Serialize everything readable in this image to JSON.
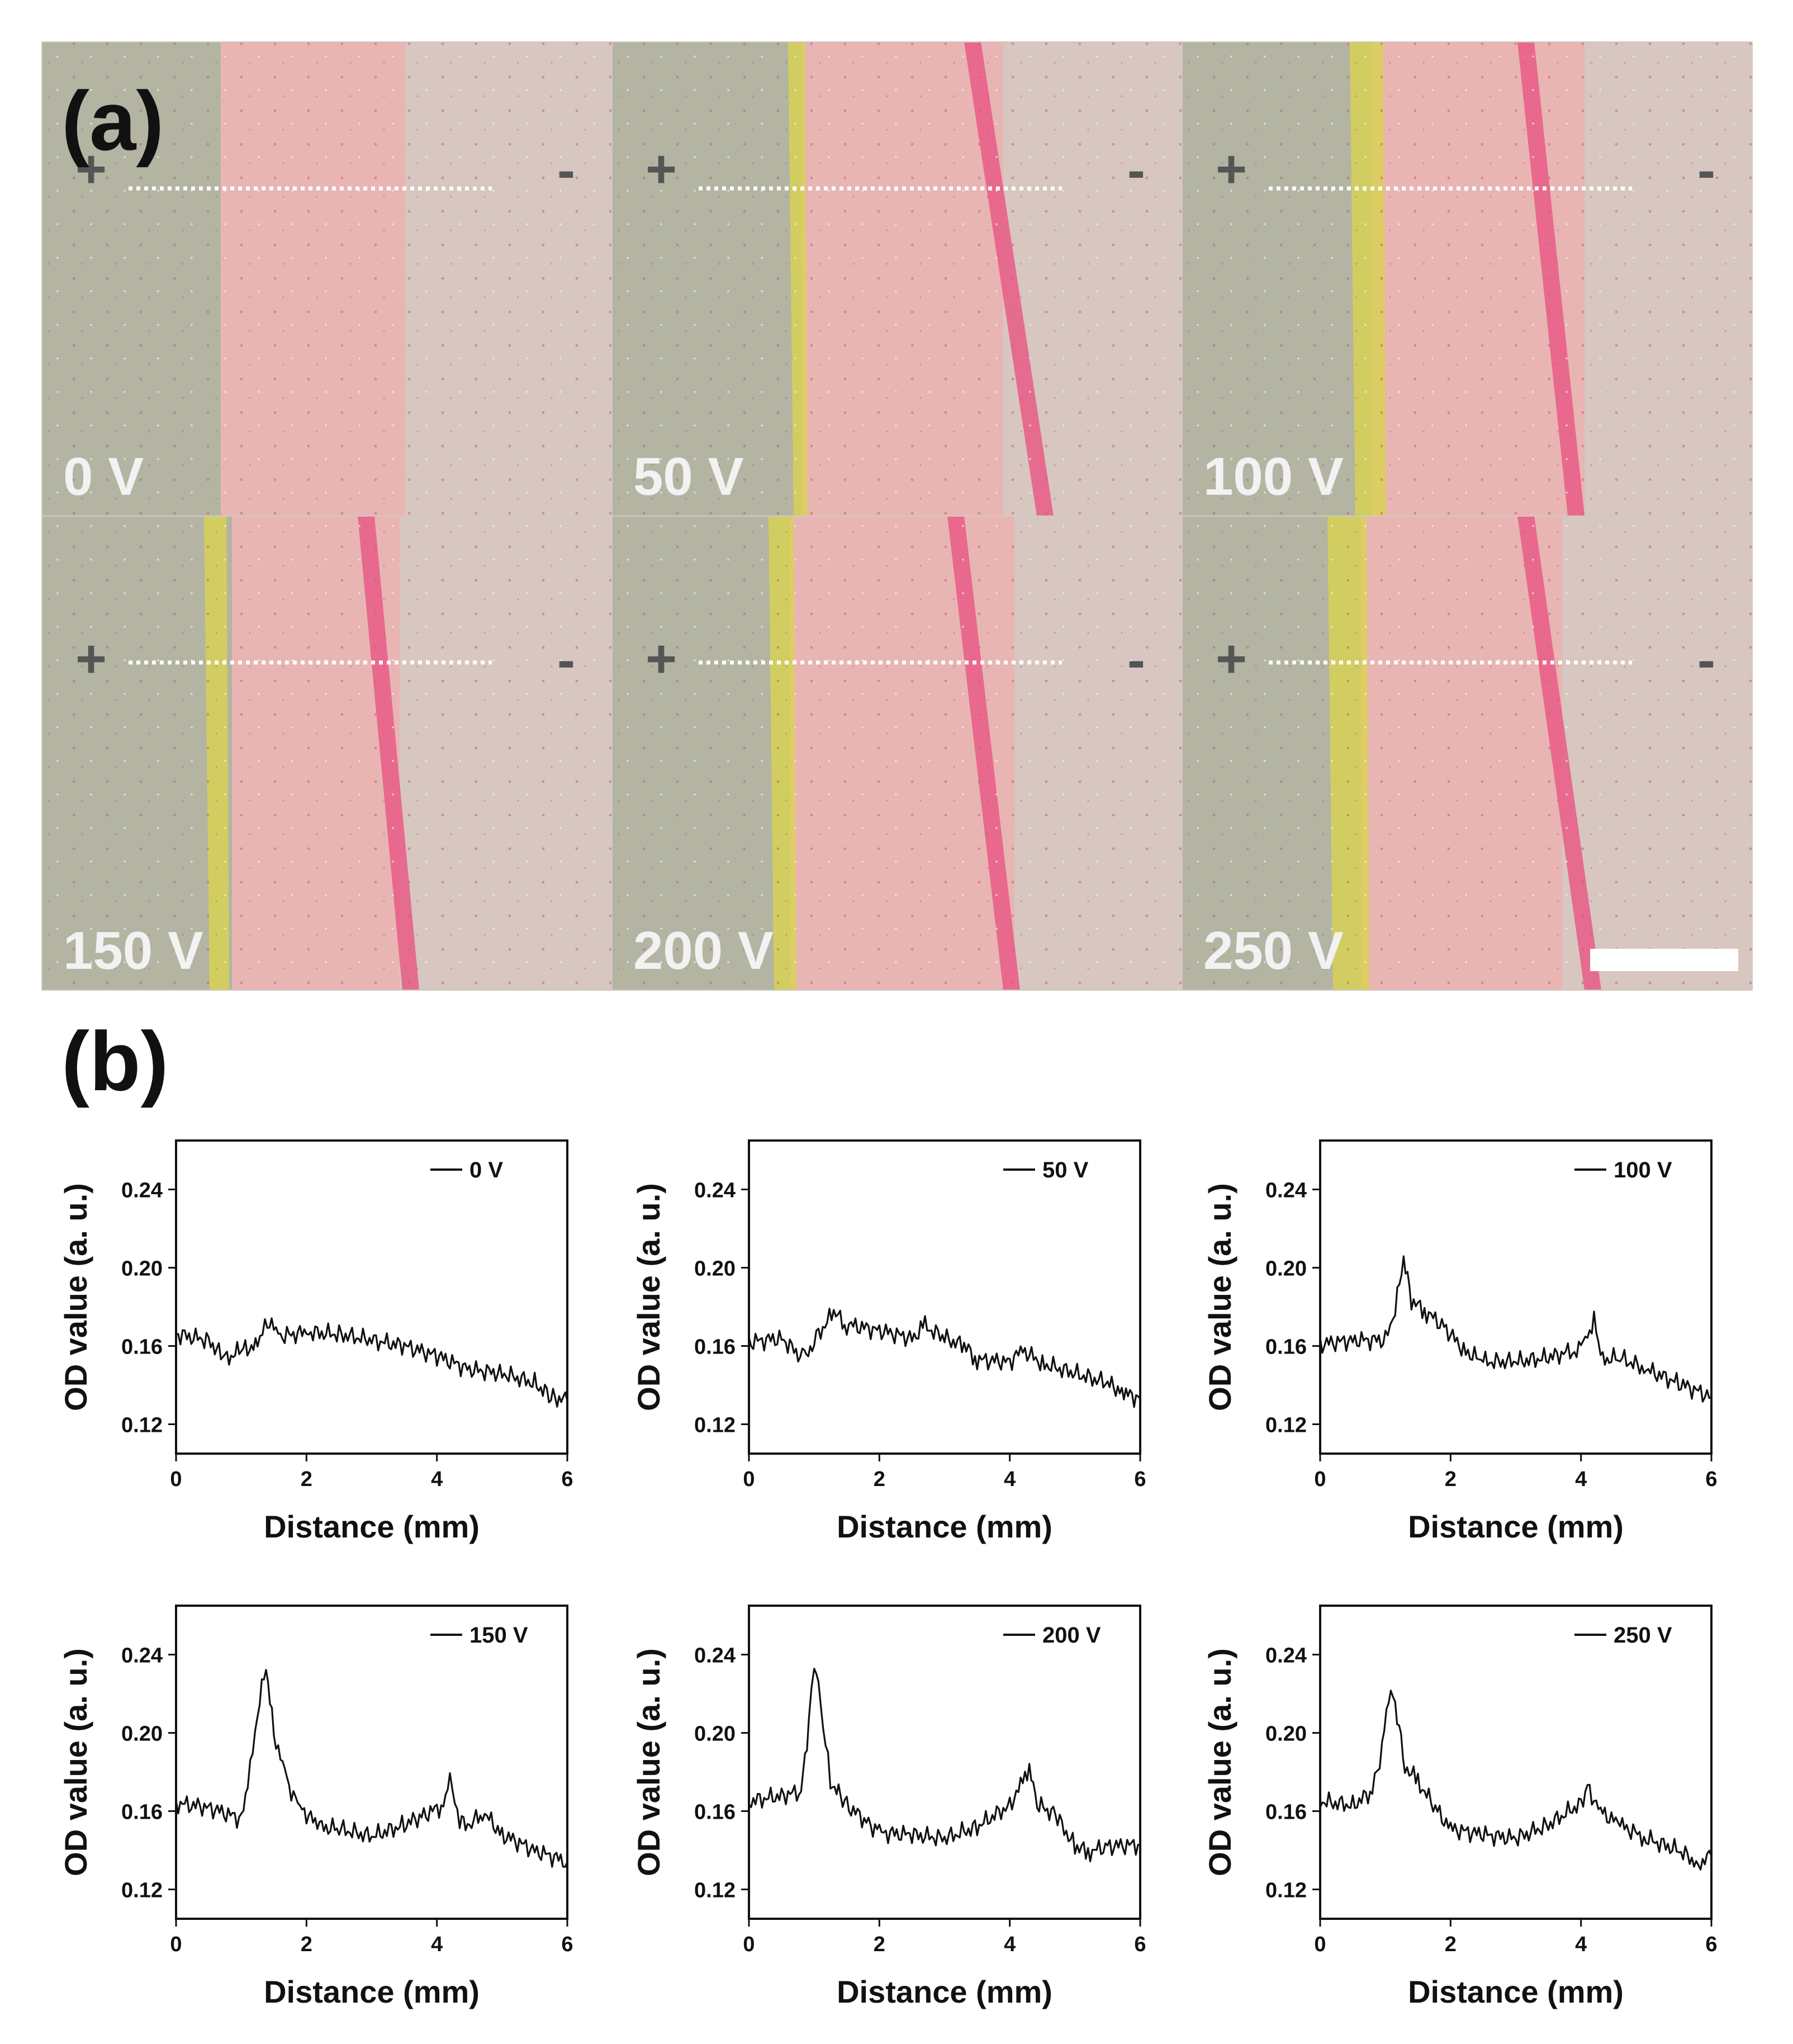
{
  "panel_a": {
    "label": "(a)",
    "polarity": {
      "left": "+",
      "right": "-"
    },
    "photos": [
      {
        "label": "0 V"
      },
      {
        "label": "50 V"
      },
      {
        "label": "100 V"
      },
      {
        "label": "150 V"
      },
      {
        "label": "200 V"
      },
      {
        "label": "250 V"
      }
    ],
    "colors": {
      "gel_left": "#b3b4a2",
      "gel_right": "#d8c6c1",
      "pink_zone": "#ebb2b0",
      "yellow_band": "#d9d350",
      "red_band": "#e85c86",
      "dotted_line": "#ffffff",
      "scale_bar": "#ffffff"
    }
  },
  "panel_b": {
    "label": "(b)"
  },
  "chart_data": [
    {
      "type": "line",
      "legend": "0 V",
      "xlabel": "Distance (mm)",
      "ylabel": "OD value (a. u.)",
      "xlim": [
        0,
        6
      ],
      "ylim": [
        0.105,
        0.265
      ],
      "xticks": [
        0,
        2,
        4,
        6
      ],
      "yticks": [
        0.12,
        0.16,
        0.2,
        0.24
      ],
      "xticklabels": [
        "0",
        "2",
        "4",
        "6"
      ],
      "yticklabels": [
        "0.12",
        "0.16",
        "0.20",
        "0.24"
      ],
      "series": [
        {
          "name": "0 V",
          "color": "#111111",
          "x": [
            0,
            0.5,
            0.75,
            1.0,
            1.25,
            1.4,
            1.6,
            2.0,
            2.5,
            3.0,
            3.5,
            4.0,
            4.5,
            5.0,
            5.5,
            5.75,
            6.0
          ],
          "y": [
            0.166,
            0.163,
            0.153,
            0.158,
            0.16,
            0.173,
            0.165,
            0.167,
            0.166,
            0.163,
            0.16,
            0.155,
            0.148,
            0.146,
            0.141,
            0.134,
            0.132
          ]
        }
      ]
    },
    {
      "type": "line",
      "legend": "50 V",
      "xlabel": "Distance (mm)",
      "ylabel": "OD value (a. u.)",
      "xlim": [
        0,
        6
      ],
      "ylim": [
        0.105,
        0.265
      ],
      "xticks": [
        0,
        2,
        4,
        6
      ],
      "yticks": [
        0.12,
        0.16,
        0.2,
        0.24
      ],
      "xticklabels": [
        "0",
        "2",
        "4",
        "6"
      ],
      "yticklabels": [
        "0.12",
        "0.16",
        "0.20",
        "0.24"
      ],
      "series": [
        {
          "name": "50 V",
          "color": "#111111",
          "x": [
            0,
            0.5,
            0.85,
            1.0,
            1.3,
            1.5,
            2.0,
            2.5,
            2.7,
            3.0,
            3.3,
            3.5,
            4.0,
            4.2,
            4.5,
            5.0,
            5.5,
            5.75,
            6.0
          ],
          "y": [
            0.162,
            0.164,
            0.153,
            0.163,
            0.177,
            0.171,
            0.168,
            0.164,
            0.17,
            0.164,
            0.16,
            0.153,
            0.152,
            0.158,
            0.151,
            0.146,
            0.141,
            0.136,
            0.133
          ]
        }
      ]
    },
    {
      "type": "line",
      "legend": "100 V",
      "xlabel": "Distance (mm)",
      "ylabel": "OD value (a. u.)",
      "xlim": [
        0,
        6
      ],
      "ylim": [
        0.105,
        0.265
      ],
      "xticks": [
        0,
        2,
        4,
        6
      ],
      "yticks": [
        0.12,
        0.16,
        0.2,
        0.24
      ],
      "xticklabels": [
        "0",
        "2",
        "4",
        "6"
      ],
      "yticklabels": [
        "0.12",
        "0.16",
        "0.20",
        "0.24"
      ],
      "series": [
        {
          "name": "100 V",
          "color": "#111111",
          "x": [
            0,
            0.5,
            1.0,
            1.15,
            1.28,
            1.4,
            1.6,
            1.9,
            2.2,
            2.5,
            3.0,
            3.5,
            3.9,
            4.1,
            4.2,
            4.3,
            4.6,
            5.0,
            5.5,
            6.0
          ],
          "y": [
            0.161,
            0.163,
            0.163,
            0.178,
            0.205,
            0.183,
            0.178,
            0.17,
            0.158,
            0.152,
            0.152,
            0.154,
            0.158,
            0.163,
            0.176,
            0.153,
            0.154,
            0.148,
            0.141,
            0.134
          ]
        }
      ]
    },
    {
      "type": "line",
      "legend": "150 V",
      "xlabel": "Distance (mm)",
      "ylabel": "OD value (a. u.)",
      "xlim": [
        0,
        6
      ],
      "ylim": [
        0.105,
        0.265
      ],
      "xticks": [
        0,
        2,
        4,
        6
      ],
      "yticks": [
        0.12,
        0.16,
        0.2,
        0.24
      ],
      "xticklabels": [
        "0",
        "2",
        "4",
        "6"
      ],
      "yticklabels": [
        "0.12",
        "0.16",
        "0.20",
        "0.24"
      ],
      "series": [
        {
          "name": "150 V",
          "color": "#111111",
          "x": [
            0,
            0.5,
            1.0,
            1.1,
            1.25,
            1.38,
            1.5,
            1.7,
            1.9,
            2.2,
            2.5,
            3.0,
            3.5,
            3.8,
            4.1,
            4.2,
            4.35,
            4.5,
            4.7,
            5.0,
            5.5,
            6.0
          ],
          "y": [
            0.164,
            0.162,
            0.156,
            0.172,
            0.21,
            0.234,
            0.2,
            0.175,
            0.162,
            0.152,
            0.151,
            0.147,
            0.153,
            0.158,
            0.163,
            0.175,
            0.155,
            0.152,
            0.16,
            0.148,
            0.14,
            0.134
          ]
        }
      ]
    },
    {
      "type": "line",
      "legend": "200 V",
      "xlabel": "Distance (mm)",
      "ylabel": "OD value (a. u.)",
      "xlim": [
        0,
        6
      ],
      "ylim": [
        0.105,
        0.265
      ],
      "xticks": [
        0,
        2,
        4,
        6
      ],
      "yticks": [
        0.12,
        0.16,
        0.2,
        0.24
      ],
      "xticklabels": [
        "0",
        "2",
        "4",
        "6"
      ],
      "yticklabels": [
        "0.12",
        "0.16",
        "0.20",
        "0.24"
      ],
      "series": [
        {
          "name": "200 V",
          "color": "#111111",
          "x": [
            0,
            0.5,
            0.8,
            0.92,
            1.0,
            1.1,
            1.25,
            1.5,
            1.8,
            2.0,
            2.5,
            3.0,
            3.5,
            4.0,
            4.2,
            4.3,
            4.45,
            4.7,
            5.0,
            5.2,
            5.5,
            6.0
          ],
          "y": [
            0.165,
            0.168,
            0.17,
            0.205,
            0.237,
            0.214,
            0.175,
            0.163,
            0.155,
            0.149,
            0.148,
            0.146,
            0.152,
            0.163,
            0.175,
            0.18,
            0.163,
            0.158,
            0.142,
            0.139,
            0.142,
            0.143
          ]
        }
      ]
    },
    {
      "type": "line",
      "legend": "250 V",
      "xlabel": "Distance (mm)",
      "ylabel": "OD value (a. u.)",
      "xlim": [
        0,
        6
      ],
      "ylim": [
        0.105,
        0.265
      ],
      "xticks": [
        0,
        2,
        4,
        6
      ],
      "yticks": [
        0.12,
        0.16,
        0.2,
        0.24
      ],
      "xticklabels": [
        "0",
        "2",
        "4",
        "6"
      ],
      "yticklabels": [
        "0.12",
        "0.16",
        "0.20",
        "0.24"
      ],
      "series": [
        {
          "name": "250 V",
          "color": "#111111",
          "x": [
            0,
            0.5,
            0.8,
            0.95,
            1.05,
            1.15,
            1.3,
            1.5,
            1.8,
            2.0,
            2.5,
            3.0,
            3.5,
            4.0,
            4.1,
            4.3,
            4.6,
            5.0,
            5.5,
            5.8,
            6.0
          ],
          "y": [
            0.165,
            0.163,
            0.17,
            0.192,
            0.22,
            0.215,
            0.183,
            0.175,
            0.16,
            0.151,
            0.148,
            0.146,
            0.153,
            0.164,
            0.172,
            0.16,
            0.153,
            0.146,
            0.14,
            0.133,
            0.137
          ]
        }
      ]
    }
  ]
}
